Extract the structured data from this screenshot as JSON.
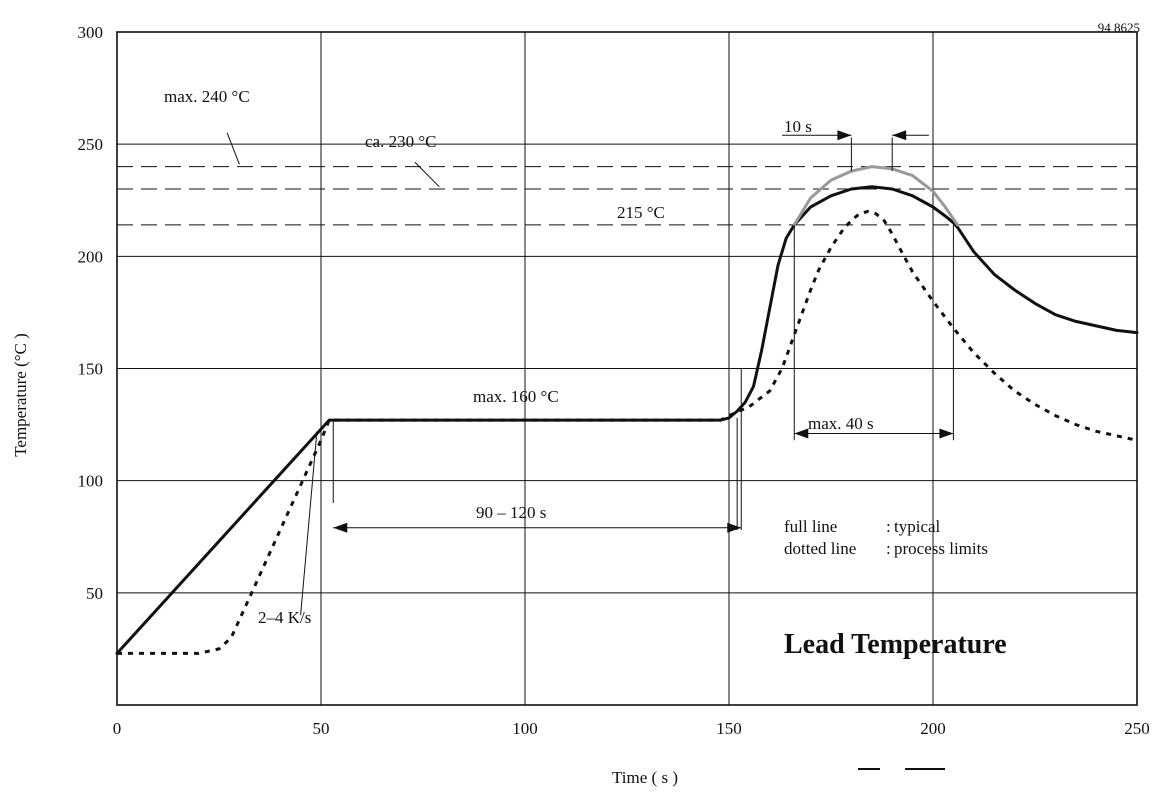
{
  "figure_code": "94 8625",
  "colors": {
    "line": "#111111",
    "limit_arc": "#999999",
    "background": "#ffffff"
  },
  "chart_data": {
    "type": "line",
    "title": "Lead Temperature",
    "xlabel": "Time ( s )",
    "ylabel": "Temperature (°C )",
    "xlim": [
      0,
      250
    ],
    "ylim": [
      0,
      300
    ],
    "x_ticks": [
      0,
      50,
      100,
      150,
      200,
      250
    ],
    "y_ticks": [
      50,
      100,
      150,
      200,
      250,
      300
    ],
    "grid": true,
    "legend_position": "right",
    "legend": [
      {
        "term": "full line",
        "sep": ":",
        "desc": "typical"
      },
      {
        "term": "dotted line",
        "sep": ":",
        "desc": "process limits"
      }
    ],
    "series": [
      {
        "style": "solid",
        "x": [
          0,
          52,
          148,
          150,
          152,
          154,
          156,
          158,
          160,
          162,
          164,
          166,
          170,
          175,
          180,
          185,
          190,
          195,
          200,
          203,
          205,
          206,
          210,
          215,
          220,
          225,
          230,
          235,
          240,
          245,
          250
        ],
        "y": [
          23,
          127,
          127,
          128,
          131,
          135,
          142,
          158,
          177,
          196,
          208,
          214,
          222,
          227,
          230,
          231,
          230,
          227,
          222,
          218,
          215,
          213,
          202,
          192,
          185,
          179,
          174,
          171,
          169,
          167,
          166
        ]
      },
      {
        "style": "dotted",
        "x": [
          0,
          10,
          20,
          25,
          28,
          30,
          35,
          40,
          45,
          50,
          52,
          148,
          150,
          155,
          160,
          163,
          165,
          168,
          170,
          172,
          175,
          178,
          180,
          182,
          184,
          186,
          188,
          190,
          192,
          195,
          200,
          205,
          210,
          215,
          220,
          225,
          230,
          235,
          240,
          245,
          250
        ],
        "y": [
          23,
          23,
          23,
          25,
          30,
          38,
          58,
          78,
          98,
          118,
          127,
          127,
          129,
          133,
          140,
          150,
          160,
          175,
          185,
          194,
          204,
          212,
          216,
          219,
          220,
          219,
          216,
          210,
          203,
          193,
          180,
          168,
          157,
          148,
          140,
          134,
          129,
          125,
          122,
          120,
          118
        ]
      },
      {
        "style": "gray",
        "x": [
          166,
          170,
          175,
          180,
          185,
          190,
          195,
          200,
          203,
          206
        ],
        "y": [
          214,
          226,
          234,
          238,
          240,
          239,
          236,
          229,
          222,
          214
        ]
      }
    ],
    "reference_lines": [
      {
        "y": 240,
        "label": "max. 240 °C"
      },
      {
        "y": 230,
        "label": "ca. 230 °C"
      },
      {
        "y": 214,
        "label": "215 °C"
      }
    ],
    "annotations": {
      "plateau_label": "max. 160 °C",
      "ramp_label": "2–4 K/s",
      "soak_label": "90 – 120 s",
      "peak_window_label": "max. 40 s",
      "peak_hold_label": "10 s"
    }
  }
}
